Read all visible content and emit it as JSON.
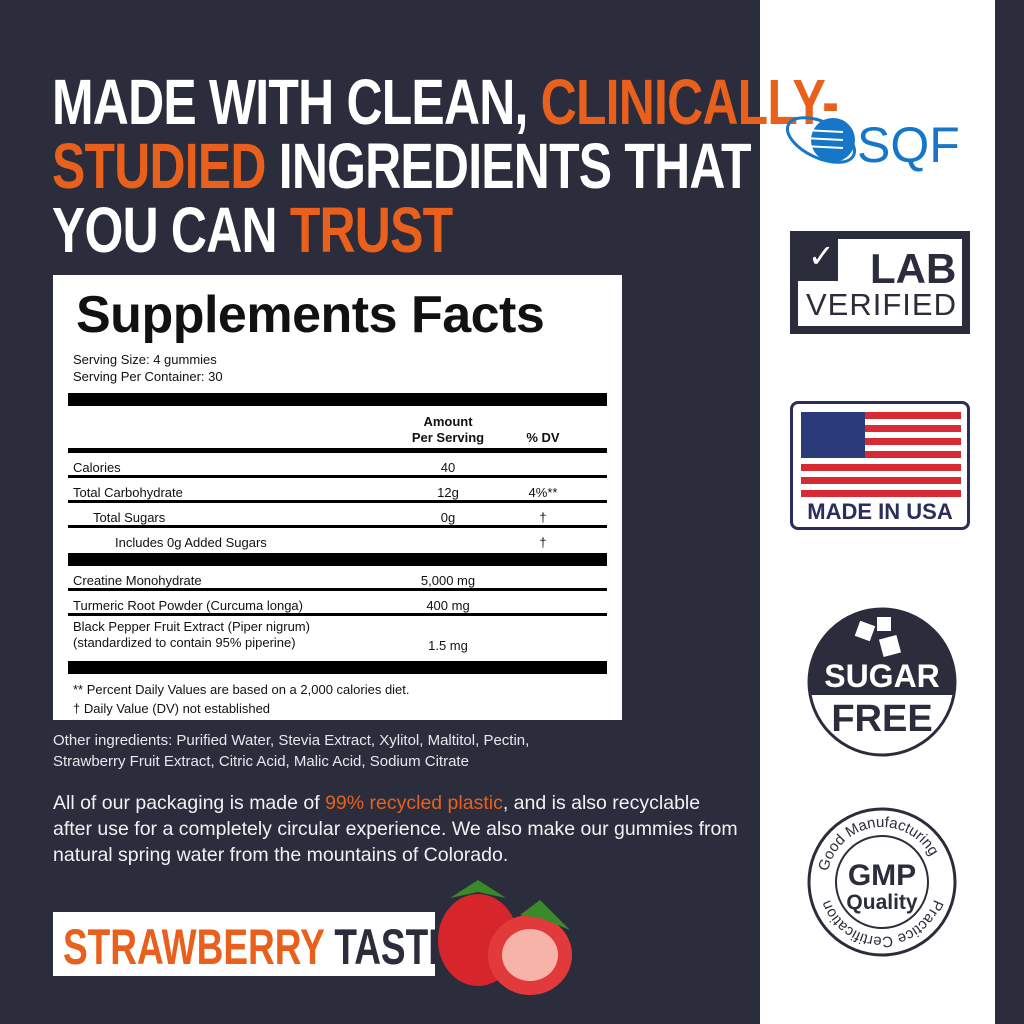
{
  "headline": {
    "line1_white": "MADE WITH CLEAN, ",
    "line1_orange": "CLINICALLY-",
    "line2_orange": "STUDIED",
    "line2_white": " INGREDIENTS THAT",
    "line3_white": "YOU CAN ",
    "line3_orange": "TRUST"
  },
  "facts": {
    "title": "Supplements Facts",
    "serving_size": "Serving Size: 4 gummies",
    "serving_per_container": "Serving Per Container: 30",
    "col_amount_1": "Amount",
    "col_amount_2": "Per Serving",
    "col_dv": "% DV",
    "rows": [
      {
        "name": "Calories",
        "amount": "40",
        "dv": ""
      },
      {
        "name": "Total Carbohydrate",
        "amount": "12g",
        "dv": "4%**"
      },
      {
        "name": "Total Sugars",
        "amount": "0g",
        "dv": "†"
      },
      {
        "name": "Includes 0g Added Sugars",
        "amount": "",
        "dv": "†"
      }
    ],
    "rows2": [
      {
        "name": "Creatine Monohydrate",
        "amount": "5,000 mg"
      },
      {
        "name": "Turmeric Root Powder (Curcuma longa)",
        "amount": "400 mg"
      },
      {
        "name": "Black Pepper Fruit Extract (Piper nigrum)",
        "name2": "(standardized to contain 95% piperine)",
        "amount": "1.5 mg"
      }
    ],
    "foot1": "**  Percent Daily Values are based on a 2,000 calories diet.",
    "foot2": "†  Daily Value (DV) not established"
  },
  "other_ingredients_1": "Other ingredients: Purified Water, Stevia Extract, Xylitol, Maltitol, Pectin,",
  "other_ingredients_2": "Strawberry Fruit Extract, Citric Acid, Malic Acid, Sodium Citrate",
  "packaging": {
    "pre": "All of our packaging is made of ",
    "highlight": "99% recycled plastic",
    "post": ", and is also recyclable after use for a completely circular experience. We also make our gummies from natural spring water from the mountains of Colorado."
  },
  "taste": {
    "orange": "STRAWBERRY",
    "dark": " TASTE"
  },
  "badges": {
    "sqf": "SQF",
    "lab_1": "LAB",
    "lab_2": "VERIFIED",
    "usa": "MADE IN USA",
    "sugar_1": "SUGAR",
    "sugar_2": "FREE",
    "gmp_1": "GMP",
    "gmp_2": "Quality",
    "gmp_ring_top": "Good Manufacturing",
    "gmp_ring_bottom": "Practice Certification"
  },
  "colors": {
    "background": "#2b2d3c",
    "accent": "#e8601c",
    "sqf_blue": "#1677c8"
  }
}
